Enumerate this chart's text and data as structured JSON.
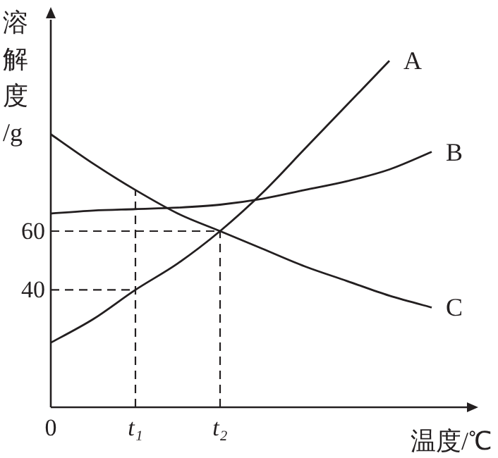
{
  "chart_data": {
    "type": "line",
    "xlabel": "温度/℃",
    "ylabel": "溶解度/g",
    "categories": [
      "0",
      null,
      "t₁",
      null,
      "t₂",
      null,
      null,
      null,
      null,
      null,
      null
    ],
    "ylim": [
      0,
      132
    ],
    "yticks": [
      40,
      60
    ],
    "grid": false,
    "line_style": "solid",
    "series": [
      {
        "name": "A",
        "color": "#231f20",
        "values": [
          22,
          30,
          40,
          49,
          60,
          73,
          88,
          103,
          118,
          null,
          null
        ]
      },
      {
        "name": "B",
        "color": "#231f20",
        "values": [
          66,
          67,
          67.5,
          68,
          69,
          71,
          74,
          77,
          81,
          87,
          null
        ]
      },
      {
        "name": "C",
        "color": "#231f20",
        "values": [
          93,
          83,
          74,
          66,
          60,
          54,
          48,
          43,
          38,
          34,
          null
        ]
      },
      {
        "color": "#231f20",
        "line_style": "dashed",
        "x": [
          "0",
          "t₁"
        ],
        "values": [
          40,
          40
        ]
      },
      {
        "color": "#231f20",
        "line_style": "dashed",
        "x": [
          "t₁",
          "t₁"
        ],
        "values": [
          0,
          74
        ]
      },
      {
        "color": "#231f20",
        "line_style": "dashed",
        "x": [
          "0",
          "t₂"
        ],
        "values": [
          60,
          60
        ]
      },
      {
        "color": "#231f20",
        "line_style": "dashed",
        "x": [
          "t₂",
          "t₂"
        ],
        "values": [
          0,
          60
        ]
      }
    ]
  }
}
